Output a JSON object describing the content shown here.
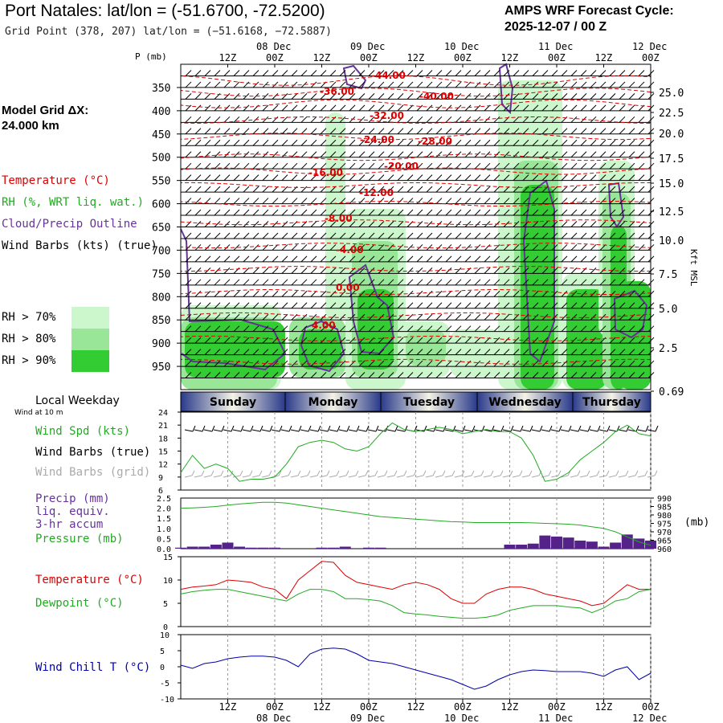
{
  "header": {
    "title": "Port Natales:  lat/lon = (-51.6700, -72.5200)",
    "grid_point": "Grid Point (378, 207) lat/lon = (−51.6168, −72.5887)",
    "cycle_label": "AMPS WRF Forecast Cycle:",
    "cycle_time": "2025-12-07 / 00  Z"
  },
  "model_grid": {
    "label": "Model Grid ΔX:",
    "value": " 24.000 km"
  },
  "colors": {
    "temp": "#dd0000",
    "rh70": "#ccf7cc",
    "rh80": "#99e699",
    "rh90": "#33cc33",
    "cloud": "#663399",
    "wind": "#000000",
    "gridbarb": "#aaaaaa",
    "precip": "#55228a",
    "pressure": "#22aa22",
    "dew": "#22aa22",
    "chill": "#0000aa"
  },
  "legend": {
    "temperature": "Temperature (°C)",
    "rh": "RH (%, WRT liq. wat.)",
    "cloud": "Cloud/Precip Outline",
    "wind": "Wind Barbs (kts) (true)",
    "rh70": "RH > 70%",
    "rh80": "RH > 80%",
    "rh90": "RH > 90%"
  },
  "time_axis": {
    "top_dates": [
      "08 Dec",
      "09 Dec",
      "10 Dec",
      "11 Dec",
      "12 Dec"
    ],
    "hours": [
      "12Z",
      "00Z",
      "12Z",
      "00Z",
      "12Z",
      "00Z",
      "12Z",
      "00Z",
      "12Z",
      "00Z"
    ],
    "bottom_dates": [
      "08 Dec",
      "09 Dec",
      "10 Dec",
      "11 Dec",
      "12 Dec"
    ]
  },
  "weekday_bar": {
    "label": "Local Weekday",
    "days": [
      "Sunday",
      "Monday",
      "Tuesday",
      "Wednesday",
      "Thursday"
    ]
  },
  "wind_note": "Wind at 10 m",
  "chart_data": [
    {
      "type": "heatmap",
      "name": "cross-section",
      "ylabel": "P (mb)",
      "y_ticks": [
        350,
        400,
        450,
        500,
        550,
        600,
        650,
        700,
        750,
        800,
        850,
        900,
        950
      ],
      "right_label": "Kft MSL",
      "right_ticks": [
        "25.0",
        "22.5",
        "20.0",
        "17.5",
        "15.0",
        "12.5",
        "10.0",
        "7.5",
        "5.0",
        "2.5",
        "0.69"
      ],
      "x_range_hours": [
        0,
        120
      ],
      "temperature_labels": [
        "-44.00",
        "-36.00",
        "-40.00",
        "-32.00",
        "-24.00",
        "-28.00",
        "-20.00",
        "-16.00",
        "-12.00",
        "-8.00",
        "-4.00",
        "0.00",
        "4.00"
      ]
    },
    {
      "type": "line",
      "name": "wind",
      "y_ticks": [
        6,
        9,
        12,
        15,
        18,
        21,
        24
      ],
      "labels": {
        "spd": "Wind Spd (kts)",
        "barbs_true": "Wind Barbs (true)",
        "barbs_grid": "Wind Barbs (grid)"
      },
      "x": [
        0,
        3,
        6,
        9,
        12,
        15,
        18,
        21,
        24,
        27,
        30,
        33,
        36,
        39,
        42,
        45,
        48,
        51,
        54,
        57,
        60,
        63,
        66,
        69,
        72,
        75,
        78,
        81,
        84,
        87,
        90,
        93,
        96,
        99,
        102,
        105,
        108,
        111,
        114,
        117,
        120
      ],
      "wind_speed": [
        10,
        14,
        11,
        12,
        11,
        8,
        8.5,
        8.5,
        9,
        12,
        16,
        17,
        17.5,
        17,
        15.5,
        15,
        16,
        19,
        21.5,
        20,
        19.5,
        20,
        20.5,
        20,
        19,
        19.5,
        20,
        19.5,
        19.5,
        18,
        14,
        8,
        8.5,
        10,
        13,
        15,
        17,
        19.5,
        21,
        19,
        18.5
      ]
    },
    {
      "type": "bar",
      "name": "precip-pressure",
      "y_ticks": [
        0.0,
        0.5,
        1.0,
        1.5,
        2.0,
        2.5
      ],
      "y2_ticks": [
        960,
        965,
        970,
        975,
        980,
        985,
        990
      ],
      "y2_unit": "(mb)",
      "labels": {
        "precip": "Precip (mm)",
        "liq": "liq. equiv.",
        "accum": "3-hr accum",
        "pressure": "Pressure (mb)"
      },
      "x": [
        0,
        3,
        6,
        9,
        12,
        15,
        18,
        21,
        24,
        27,
        30,
        33,
        36,
        39,
        42,
        45,
        48,
        51,
        54,
        57,
        60,
        63,
        66,
        69,
        72,
        75,
        78,
        81,
        84,
        87,
        90,
        93,
        96,
        99,
        102,
        105,
        108,
        111,
        114,
        117,
        120
      ],
      "pressure": [
        984,
        984.2,
        984.5,
        985,
        985.8,
        986.5,
        987,
        987.5,
        987.5,
        987,
        986,
        985,
        984,
        983,
        982,
        981,
        980,
        979,
        978.5,
        978,
        977.5,
        977,
        976.5,
        976,
        975.8,
        975.5,
        975.5,
        975.5,
        975.5,
        975.5,
        975.3,
        975,
        974.8,
        974.5,
        974,
        973,
        972,
        970,
        967,
        964,
        962
      ],
      "precip": [
        0.05,
        0.1,
        0.1,
        0.2,
        0.3,
        0.1,
        0.05,
        0.05,
        0.05,
        0,
        0,
        0,
        0.05,
        0.05,
        0.1,
        0,
        0.05,
        0.05,
        0,
        0,
        0,
        0,
        0,
        0,
        0,
        0,
        0,
        0,
        0.2,
        0.2,
        0.25,
        0.65,
        0.6,
        0.55,
        0.4,
        0.35,
        0.1,
        0.3,
        0.7,
        0.5,
        0.4
      ]
    },
    {
      "type": "line",
      "name": "temperature-dewpoint",
      "y_ticks": [
        0,
        5,
        10,
        15
      ],
      "series": [
        {
          "name": "Temperature (°C)",
          "values": [
            8,
            8.5,
            8.7,
            9,
            10,
            9.8,
            9.5,
            8.5,
            8,
            6,
            10,
            12,
            14,
            13.8,
            11,
            9.5,
            9,
            8.5,
            8,
            9,
            9.5,
            9,
            8,
            6,
            5,
            5,
            7,
            8,
            8.5,
            8.5,
            8,
            7,
            6.5,
            6,
            5.5,
            4.5,
            5,
            7,
            9,
            8,
            8
          ]
        },
        {
          "name": "Dewpoint (°C)",
          "values": [
            7,
            7.5,
            7.8,
            8,
            8,
            7.5,
            7,
            6.5,
            6,
            5.5,
            7,
            8,
            8,
            7.5,
            6,
            6,
            5.8,
            5.5,
            4.5,
            3,
            2.7,
            2.5,
            2.2,
            2,
            1.8,
            1.8,
            2,
            2.5,
            3.5,
            4,
            4.5,
            4.5,
            4.5,
            4.2,
            4,
            3,
            4,
            5.5,
            6,
            7.5,
            8
          ]
        }
      ]
    },
    {
      "type": "line",
      "name": "wind-chill",
      "y_ticks": [
        -10,
        -5,
        0,
        5,
        10
      ],
      "series": [
        {
          "name": "Wind Chill T (°C)",
          "values": [
            0.5,
            -0.5,
            1,
            1.5,
            2.5,
            3,
            3.3,
            3.3,
            3,
            2,
            0,
            4,
            5.5,
            5.8,
            5.5,
            4,
            2,
            1.5,
            1,
            0,
            -1,
            -2,
            -3,
            -4,
            -5.5,
            -7,
            -6,
            -4,
            -2.5,
            -1.5,
            -1,
            -1.2,
            -1.5,
            -1.5,
            -1.5,
            -2,
            -3,
            -1,
            0,
            -4,
            -2
          ]
        }
      ]
    }
  ]
}
